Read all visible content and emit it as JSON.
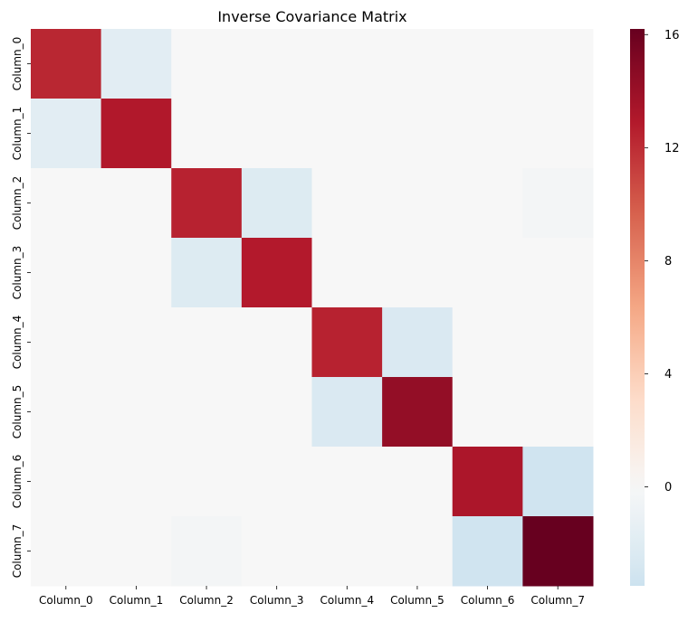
{
  "chart_data": {
    "type": "heatmap",
    "title": "Inverse Covariance Matrix",
    "xlabel": "",
    "ylabel": "",
    "x_labels": [
      "Column_0",
      "Column_1",
      "Column_2",
      "Column_3",
      "Column_4",
      "Column_5",
      "Column_6",
      "Column_7"
    ],
    "y_labels": [
      "Column_0",
      "Column_1",
      "Column_2",
      "Column_3",
      "Column_4",
      "Column_5",
      "Column_6",
      "Column_7"
    ],
    "values": [
      [
        12.3,
        -1.8,
        0.0,
        0.0,
        0.0,
        0.0,
        0.0,
        0.0
      ],
      [
        -1.8,
        13.0,
        0.0,
        0.0,
        0.0,
        0.0,
        0.0,
        0.0
      ],
      [
        0.0,
        0.0,
        12.5,
        -2.2,
        0.0,
        0.0,
        0.0,
        -0.3
      ],
      [
        0.0,
        0.0,
        -2.2,
        12.9,
        0.0,
        0.0,
        0.0,
        0.0
      ],
      [
        0.0,
        0.0,
        0.0,
        0.0,
        12.5,
        -2.5,
        0.0,
        0.0
      ],
      [
        0.0,
        0.0,
        0.0,
        0.0,
        -2.5,
        14.3,
        0.0,
        0.0
      ],
      [
        0.0,
        0.0,
        0.0,
        0.0,
        0.0,
        0.0,
        13.2,
        -3.3
      ],
      [
        0.0,
        0.0,
        -0.3,
        0.0,
        0.0,
        0.0,
        -3.3,
        16.2
      ]
    ],
    "colorbar": {
      "colormap": "RdBu_r",
      "center": 0,
      "vmin": -3.5,
      "vmax": 16.2,
      "ticks": [
        "0",
        "4",
        "8",
        "12",
        "16"
      ],
      "tick_values": [
        0,
        4,
        8,
        12,
        16
      ]
    },
    "grid": false
  }
}
